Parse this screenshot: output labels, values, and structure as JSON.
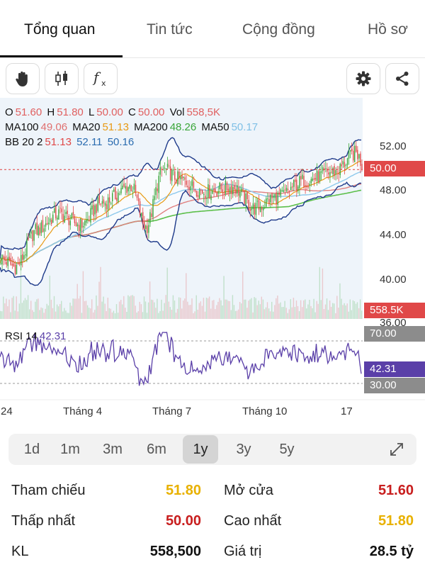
{
  "tabs": [
    {
      "label": "Tổng quan",
      "active": true
    },
    {
      "label": "Tin tức",
      "active": false
    },
    {
      "label": "Cộng đồng",
      "active": false
    },
    {
      "label": "Hồ sơ",
      "active": false
    }
  ],
  "toolbar": {
    "left_icons": [
      "hand-icon",
      "candlestick-icon",
      "function-icon"
    ],
    "right_icons": [
      "gear-icon",
      "share-icon"
    ]
  },
  "indicators": {
    "ohlc": {
      "o_label": "O",
      "o": "51.60",
      "h_label": "H",
      "h": "51.80",
      "l_label": "L",
      "l": "50.00",
      "c_label": "C",
      "c": "50.00",
      "vol_label": "Vol",
      "vol": "558,5K"
    },
    "ma": {
      "ma100_label": "MA100",
      "ma100": "49.06",
      "ma20_label": "MA20",
      "ma20": "51.13",
      "ma200_label": "MA200",
      "ma200": "48.26",
      "ma50_label": "MA50",
      "ma50": "50.17"
    },
    "bb": {
      "label": "BB 20 2",
      "v1": "51.13",
      "v2": "52.11",
      "v3": "50.16"
    },
    "rsi": {
      "label": "RSI 14",
      "value": "42.31"
    }
  },
  "price_axis": {
    "ticks": [
      "52.00",
      "48.00",
      "44.00",
      "40.00",
      "36.00"
    ],
    "current_price": "50.00",
    "volume_tag": "558.5K",
    "rsi_ticks": [
      "70.00",
      "30.00"
    ],
    "rsi_current": "42.31"
  },
  "x_axis": {
    "labels": [
      "24",
      "Tháng 4",
      "Tháng 7",
      "Tháng 10",
      "17"
    ]
  },
  "colors": {
    "up": "#3aa63a",
    "down": "#e04848",
    "price_line": "#e03c3c",
    "ma20": "#e89a14",
    "ma50": "#8ec9ec",
    "ma100": "#e08080",
    "ma200": "#5cbf4a",
    "bb": "#1e3a8a",
    "rsi": "#5a3fa8"
  },
  "periods": [
    {
      "label": "1d",
      "active": false
    },
    {
      "label": "1m",
      "active": false
    },
    {
      "label": "3m",
      "active": false
    },
    {
      "label": "6m",
      "active": false
    },
    {
      "label": "1y",
      "active": true
    },
    {
      "label": "3y",
      "active": false
    },
    {
      "label": "5y",
      "active": false
    }
  ],
  "stats": {
    "tham_chieu_label": "Tham chiếu",
    "tham_chieu": "51.80",
    "mo_cua_label": "Mở cửa",
    "mo_cua": "51.60",
    "thap_nhat_label": "Thấp nhất",
    "thap_nhat": "50.00",
    "cao_nhat_label": "Cao nhất",
    "cao_nhat": "51.80",
    "kl_label": "KL",
    "kl": "558,500",
    "gia_tri_label": "Giá trị",
    "gia_tri": "28.5 tỷ"
  }
}
